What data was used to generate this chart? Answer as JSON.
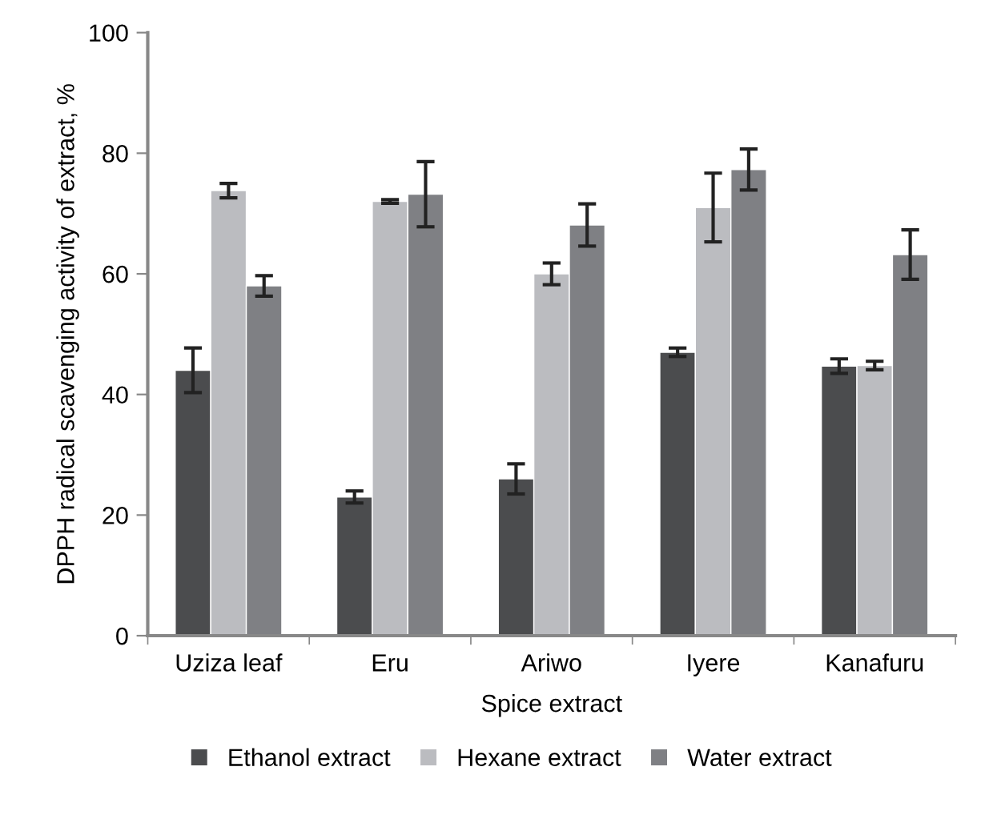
{
  "chart_data": {
    "type": "bar",
    "xlabel": "Spice extract",
    "ylabel": "DPPH radical scavenging activity of extract, %",
    "categories": [
      "Uziza leaf",
      "Eru",
      "Ariwo",
      "Iyere",
      "Kanafuru"
    ],
    "series": [
      {
        "name": "Ethanol extract",
        "color": "#4b4c4e",
        "values": [
          44,
          23,
          26,
          47,
          44.7
        ],
        "errors": [
          3.7,
          1,
          2.5,
          0.7,
          1.2
        ]
      },
      {
        "name": "Hexane extract",
        "color": "#bbbcc0",
        "values": [
          73.8,
          72,
          60,
          71,
          44.8
        ],
        "errors": [
          1.2,
          0.3,
          1.8,
          5.7,
          0.7
        ]
      },
      {
        "name": "Water extract",
        "color": "#7f8084",
        "values": [
          58,
          73.2,
          68.1,
          77.3,
          63.2
        ],
        "errors": [
          1.7,
          5.4,
          3.5,
          3.4,
          4.1
        ]
      }
    ],
    "ylim": [
      0,
      100
    ],
    "yticks": [
      0,
      20,
      40,
      60,
      80,
      100
    ],
    "grid": false,
    "legend": "bottom"
  }
}
